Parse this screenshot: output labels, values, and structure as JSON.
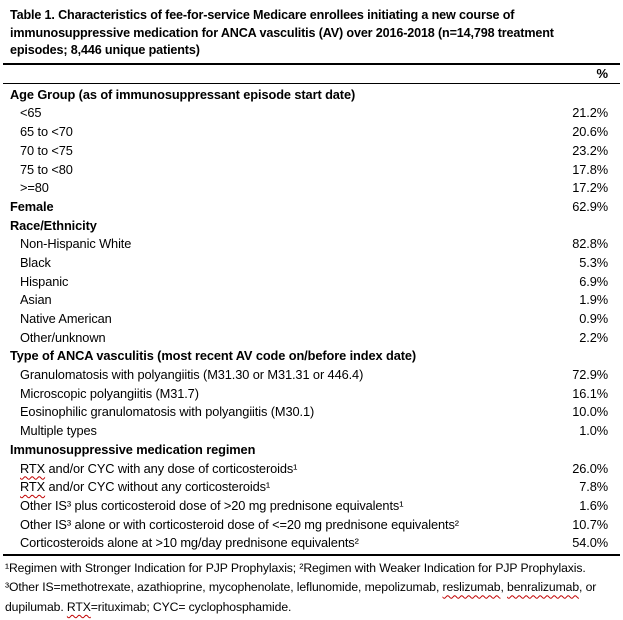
{
  "title": "Table 1. Characteristics of fee-for-service Medicare enrollees initiating a new course of immunosuppressive medication for ANCA vasculitis (AV) over 2016-2018 (n=14,798 treatment episodes; 8,446 unique patients)",
  "value_column_header": "%",
  "rows": [
    {
      "label": "Age Group (as of immunosuppressant episode start date)",
      "value": "",
      "bold": true,
      "indent": 0
    },
    {
      "label": "<65",
      "value": "21.2%",
      "bold": false,
      "indent": 1
    },
    {
      "label": "65 to <70",
      "value": "20.6%",
      "bold": false,
      "indent": 1
    },
    {
      "label": "70 to <75",
      "value": "23.2%",
      "bold": false,
      "indent": 1
    },
    {
      "label": "75 to <80",
      "value": "17.8%",
      "bold": false,
      "indent": 1
    },
    {
      "label": ">=80",
      "value": "17.2%",
      "bold": false,
      "indent": 1
    },
    {
      "label": "Female",
      "value": "62.9%",
      "bold": true,
      "indent": 0
    },
    {
      "label": "Race/Ethnicity",
      "value": "",
      "bold": true,
      "indent": 0
    },
    {
      "label": "Non-Hispanic White",
      "value": "82.8%",
      "bold": false,
      "indent": 1
    },
    {
      "label": "Black",
      "value": "5.3%",
      "bold": false,
      "indent": 1
    },
    {
      "label": "Hispanic",
      "value": "6.9%",
      "bold": false,
      "indent": 1
    },
    {
      "label": "Asian",
      "value": "1.9%",
      "bold": false,
      "indent": 1
    },
    {
      "label": "Native American",
      "value": "0.9%",
      "bold": false,
      "indent": 1
    },
    {
      "label": "Other/unknown",
      "value": "2.2%",
      "bold": false,
      "indent": 1
    },
    {
      "label": "Type of ANCA vasculitis (most recent AV code on/before index date)",
      "value": "",
      "bold": true,
      "indent": 0
    },
    {
      "label": "Granulomatosis with polyangiitis (M31.30 or M31.31 or 446.4)",
      "value": "72.9%",
      "bold": false,
      "indent": 1
    },
    {
      "label": "Microscopic polyangiitis (M31.7)",
      "value": "16.1%",
      "bold": false,
      "indent": 1
    },
    {
      "label": "Eosinophilic granulomatosis with polyangiitis (M30.1)",
      "value": "10.0%",
      "bold": false,
      "indent": 1
    },
    {
      "label": "Multiple types",
      "value": "1.0%",
      "bold": false,
      "indent": 1
    },
    {
      "label": "Immunosuppressive medication regimen",
      "value": "",
      "bold": true,
      "indent": 0
    },
    {
      "label": "RTX and/or CYC with any dose of corticosteroids¹",
      "value": "26.0%",
      "bold": false,
      "indent": 1,
      "squiggles": [
        "RTX"
      ]
    },
    {
      "label": "RTX and/or CYC without any corticosteroids¹",
      "value": "7.8%",
      "bold": false,
      "indent": 1,
      "squiggles": [
        "RTX"
      ]
    },
    {
      "label": "Other IS³ plus corticosteroid dose of >20 mg prednisone equivalents¹",
      "value": "1.6%",
      "bold": false,
      "indent": 1
    },
    {
      "label": "Other IS³ alone or with corticosteroid dose of <=20 mg prednisone equivalents²",
      "value": "10.7%",
      "bold": false,
      "indent": 1
    },
    {
      "label": "Corticosteroids alone at >10 mg/day prednisone equivalents²",
      "value": "54.0%",
      "bold": false,
      "indent": 1
    }
  ],
  "footnote": {
    "text": "¹Regimen with Stronger Indication for PJP Prophylaxis; ²Regimen with Weaker Indication for PJP Prophylaxis. ³Other IS=methotrexate, azathioprine, mycophenolate, leflunomide, mepolizumab, reslizumab, benralizumab, or dupilumab. RTX=rituximab; CYC= cyclophosphamide.",
    "squiggles": [
      "reslizumab",
      "benralizumab",
      "RTX"
    ]
  },
  "colors": {
    "text": "#000000",
    "background": "#ffffff",
    "rule": "#000000",
    "squiggle_red": "#c00000"
  }
}
